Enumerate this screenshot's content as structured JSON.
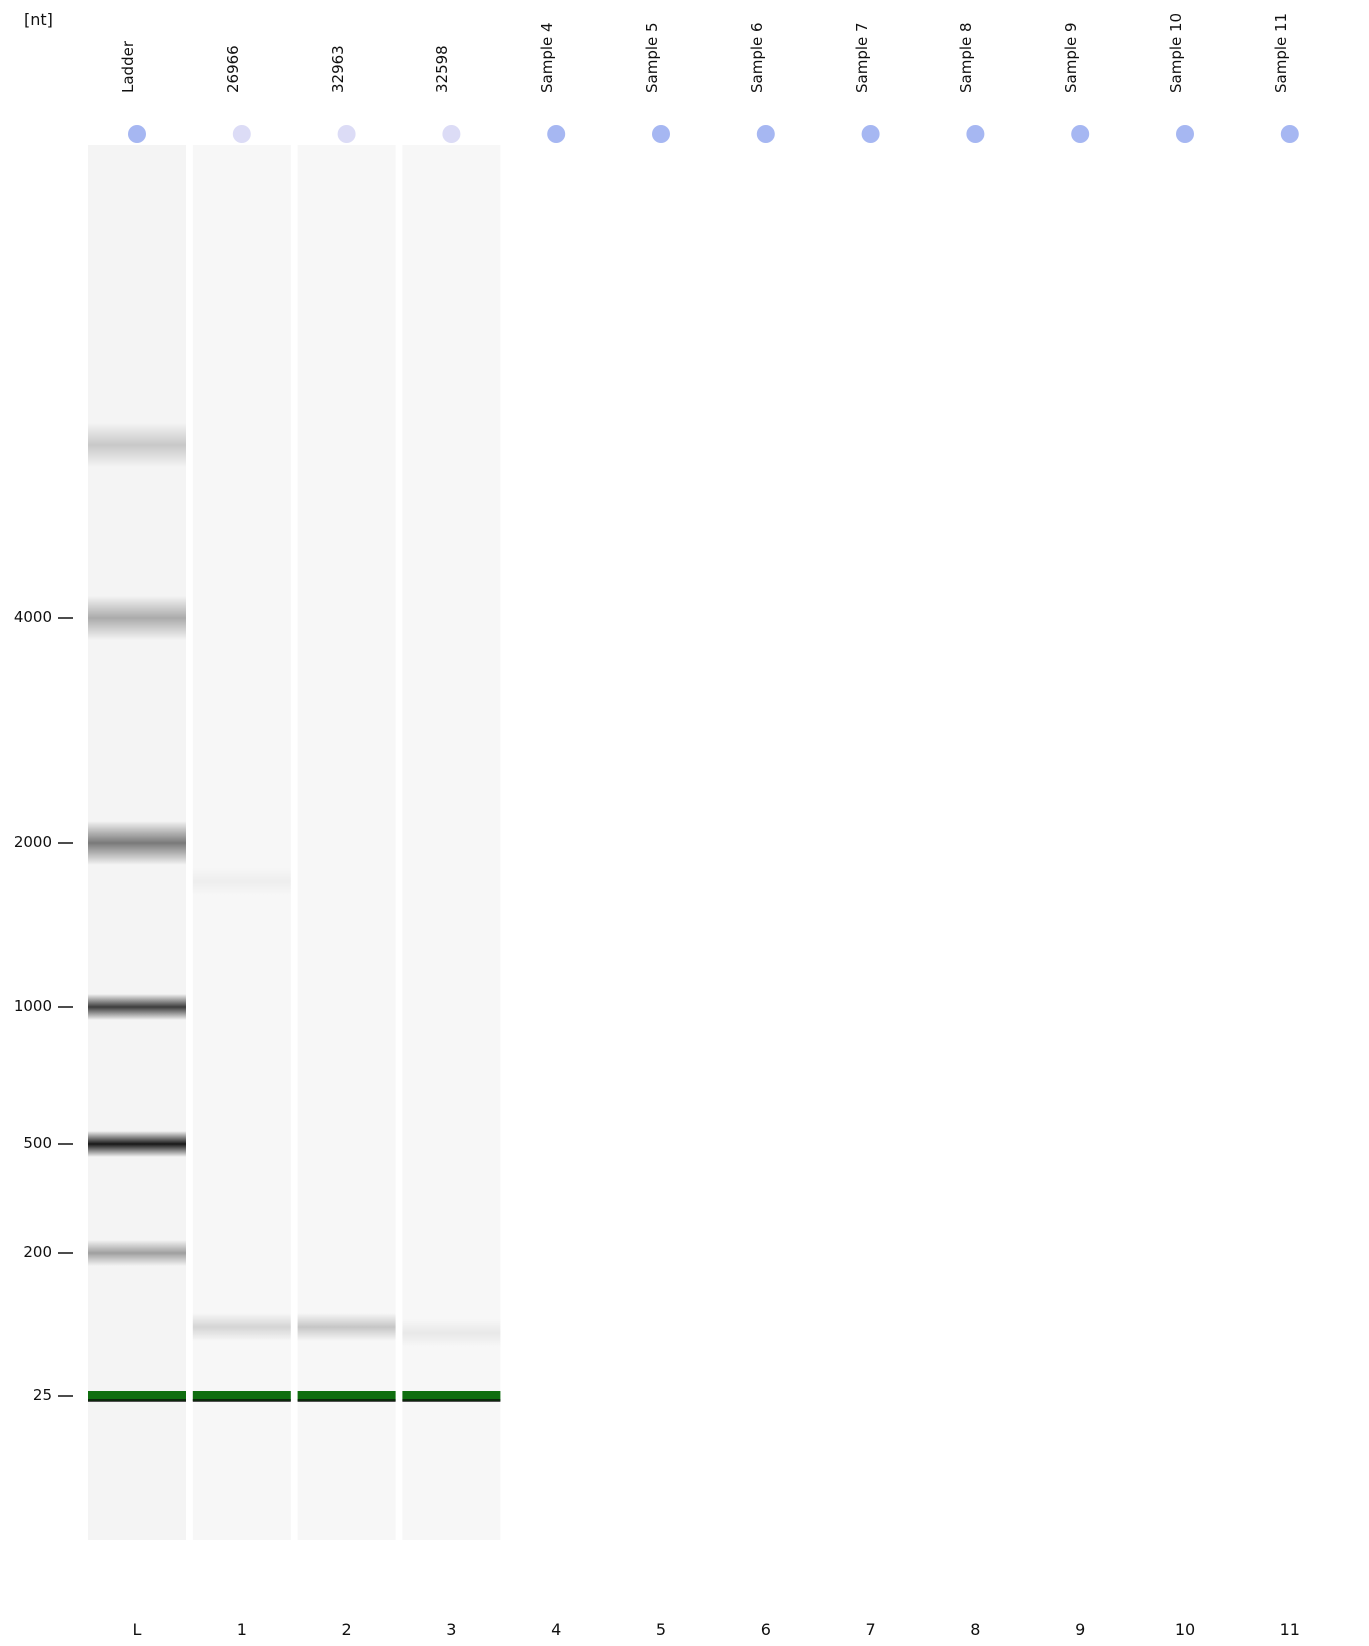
{
  "unit_label": "[nt]",
  "colors": {
    "marker_active": "#a6b7f2",
    "marker_faint": "#dcdcf6",
    "lower_marker": "#0f6e0f",
    "ladder_band": "#3a3a3a"
  },
  "chart_data": {
    "type": "gel",
    "ylabel": "[nt]",
    "y_ticks": [
      4000,
      2000,
      1000,
      500,
      200,
      25
    ],
    "lanes": [
      {
        "name": "Ladder",
        "number": "L",
        "loaded": true,
        "marker": "active",
        "bands": [
          {
            "size": 6000,
            "intensity": 0.18
          },
          {
            "size": 4000,
            "intensity": 0.3
          },
          {
            "size": 2000,
            "intensity": 0.5
          },
          {
            "size": 1000,
            "intensity": 0.75
          },
          {
            "size": 500,
            "intensity": 0.9
          },
          {
            "size": 200,
            "intensity": 0.35
          }
        ],
        "lower_marker": 25
      },
      {
        "name": "26966",
        "number": "1",
        "loaded": true,
        "marker": "faint",
        "bands": [
          {
            "size": 90,
            "intensity": 0.14
          },
          {
            "size": 1700,
            "intensity": 0.04
          }
        ],
        "lower_marker": 25
      },
      {
        "name": "32963",
        "number": "2",
        "loaded": true,
        "marker": "faint",
        "bands": [
          {
            "size": 90,
            "intensity": 0.2
          }
        ],
        "lower_marker": 25
      },
      {
        "name": "32598",
        "number": "3",
        "loaded": true,
        "marker": "faint",
        "bands": [
          {
            "size": 80,
            "intensity": 0.06
          }
        ],
        "lower_marker": 25
      },
      {
        "name": "Sample 4",
        "number": "4",
        "loaded": false,
        "marker": "active"
      },
      {
        "name": "Sample 5",
        "number": "5",
        "loaded": false,
        "marker": "active"
      },
      {
        "name": "Sample 6",
        "number": "6",
        "loaded": false,
        "marker": "active"
      },
      {
        "name": "Sample 7",
        "number": "7",
        "loaded": false,
        "marker": "active"
      },
      {
        "name": "Sample 8",
        "number": "8",
        "loaded": false,
        "marker": "active"
      },
      {
        "name": "Sample 9",
        "number": "9",
        "loaded": false,
        "marker": "active"
      },
      {
        "name": "Sample 10",
        "number": "10",
        "loaded": false,
        "marker": "active"
      },
      {
        "name": "Sample 11",
        "number": "11",
        "loaded": false,
        "marker": "active"
      }
    ]
  }
}
